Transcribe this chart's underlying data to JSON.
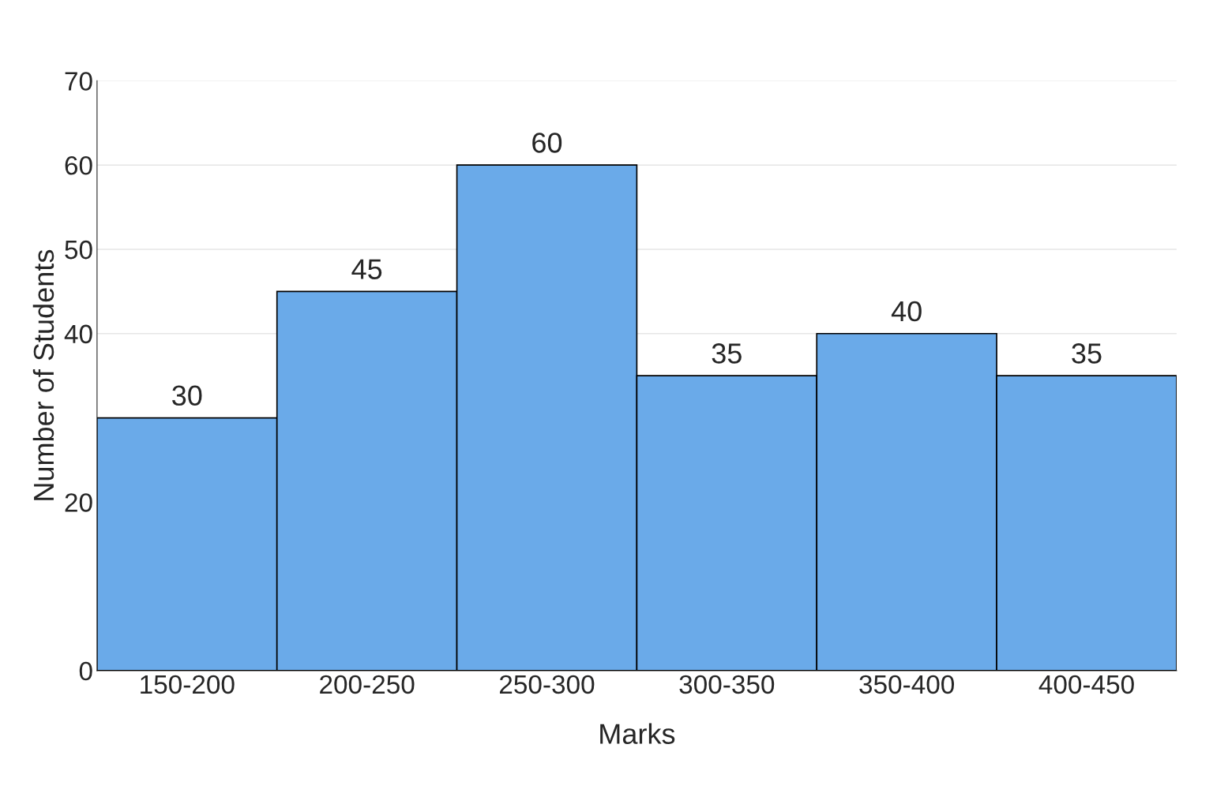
{
  "chart_data": {
    "type": "bar",
    "xlabel": "Marks",
    "ylabel": "Number of Students",
    "categories": [
      "150-200",
      "200-250",
      "250-300",
      "300-350",
      "350-400",
      "400-450"
    ],
    "values": [
      30,
      45,
      60,
      35,
      40,
      35
    ],
    "color": "#6aaae9",
    "ylim": [
      0,
      70
    ],
    "yticks": [
      0,
      20,
      40,
      50,
      60,
      70
    ],
    "grid": "y",
    "data_labels": true
  }
}
